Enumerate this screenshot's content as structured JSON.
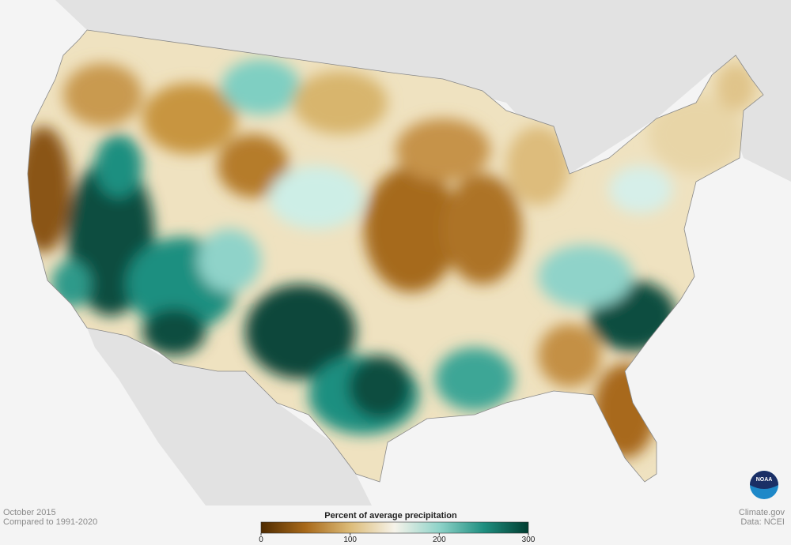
{
  "map": {
    "date": "October 2015",
    "baseline": "Compared to 1991-2020",
    "legend": {
      "title": "Percent of average precipitation",
      "range": [
        0,
        300
      ],
      "ticks": [
        0,
        100,
        200,
        300
      ],
      "colors": [
        "#4f2b00",
        "#a8691a",
        "#dcbb78",
        "#f6f3ea",
        "#8fd3c9",
        "#1f8f80",
        "#003d30"
      ]
    },
    "credit": "Climate.gov",
    "source": "Data: NCEI",
    "logo": "NOAA"
  }
}
